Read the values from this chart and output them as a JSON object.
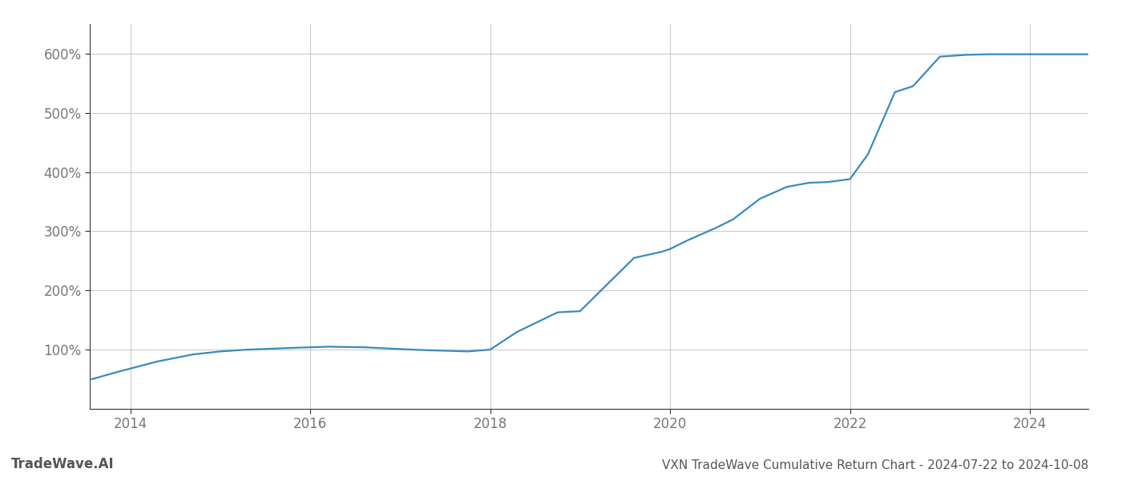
{
  "title": "VXN TradeWave Cumulative Return Chart - 2024-07-22 to 2024-10-08",
  "watermark": "TradeWave.AI",
  "line_color": "#3a8abf",
  "background_color": "#ffffff",
  "grid_color": "#cccccc",
  "x_tick_years": [
    2014,
    2016,
    2018,
    2020,
    2022,
    2024
  ],
  "y_ticks": [
    100,
    200,
    300,
    400,
    500,
    600
  ],
  "ylim": [
    0,
    650
  ],
  "xlim_start": 2013.55,
  "xlim_end": 2024.65,
  "data_x": [
    2013.57,
    2013.85,
    2014.3,
    2014.7,
    2015.0,
    2015.3,
    2015.8,
    2016.2,
    2016.6,
    2017.0,
    2017.3,
    2017.55,
    2017.75,
    2018.0,
    2018.3,
    2018.75,
    2019.0,
    2019.3,
    2019.6,
    2019.9,
    2020.0,
    2020.2,
    2020.5,
    2020.7,
    2021.0,
    2021.3,
    2021.55,
    2021.75,
    2022.0,
    2022.2,
    2022.5,
    2022.7,
    2023.0,
    2023.3,
    2023.55,
    2023.75,
    2024.0,
    2024.3,
    2024.65
  ],
  "data_y": [
    50,
    62,
    80,
    92,
    97,
    100,
    103,
    105,
    104,
    101,
    99,
    98,
    97,
    100,
    130,
    163,
    165,
    210,
    255,
    265,
    270,
    285,
    305,
    320,
    355,
    375,
    382,
    383,
    388,
    430,
    535,
    545,
    595,
    598,
    599,
    599,
    599,
    599,
    599
  ],
  "title_fontsize": 11,
  "watermark_fontsize": 12,
  "tick_fontsize": 12,
  "tick_color": "#777777",
  "title_color": "#555555",
  "watermark_color": "#555555",
  "spine_color": "#333333"
}
